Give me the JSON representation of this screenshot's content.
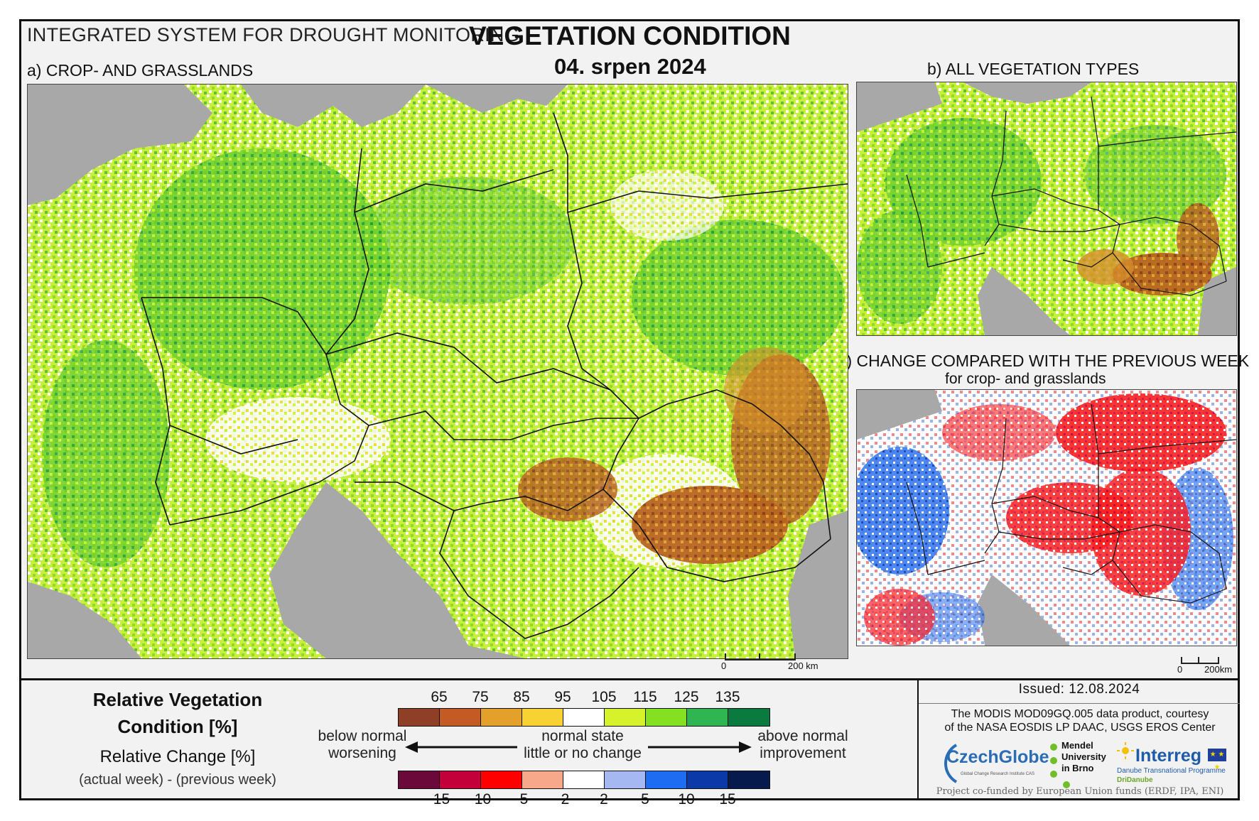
{
  "header": {
    "system": "INTEGRATED SYSTEM FOR DROUGHT MONITORING",
    "title": "VEGETATION CONDITION",
    "date": "04. srpen 2024"
  },
  "panels": {
    "a": "a) CROP- AND GRASSLANDS",
    "b": "b) ALL VEGETATION TYPES",
    "c": "c) CHANGE COMPARED WITH THE PREVIOUS WEEK",
    "c_sub": "for crop- and grasslands"
  },
  "scale": {
    "a": {
      "zero": "0",
      "dist": "200 km"
    },
    "c": {
      "zero": "0",
      "dist": "200km"
    }
  },
  "legend": {
    "rvc_title": "Relative Vegetation Condition [%]",
    "rc_title": "Relative Change [%]",
    "rc_sub": "(actual week) - (previous week)",
    "rvc_ticks": [
      "65",
      "75",
      "85",
      "95",
      "105",
      "115",
      "125",
      "135"
    ],
    "rvc_colors": [
      "#8e3f25",
      "#c45a24",
      "#e3a02b",
      "#f7d232",
      "#ffffff",
      "#d6f22a",
      "#86e022",
      "#2fb552",
      "#0b7a3e"
    ],
    "rc_ticks": [
      "-15",
      "-10",
      "-5",
      "-2",
      "2",
      "5",
      "10",
      "15"
    ],
    "rc_colors": [
      "#6b0a3a",
      "#c4003a",
      "#ff0000",
      "#f7a88a",
      "#ffffff",
      "#a5b8f2",
      "#1e6cf2",
      "#0b3aa8",
      "#071a4e"
    ],
    "below_normal": "below normal",
    "worsening": "worsening",
    "normal_state": "normal state",
    "little_change": "little or no change",
    "above_normal": "above normal",
    "improvement": "improvement"
  },
  "footer": {
    "issued": "Issued: 12.08.2024",
    "credit_line1": "The MODIS MOD09GQ.005 data product, courtesy",
    "credit_line2": "of the NASA EOSDIS LP DAAC, USGS EROS Center",
    "czechglobe": "CzechGlobe",
    "czechglobe_sub": "Global Change Research Institute CAS",
    "mendel_1": "Mendel",
    "mendel_2": "University",
    "mendel_3": "in Brno",
    "interreg": "Interreg",
    "interreg_sub1": "Danube Transnational Programme",
    "interreg_sub2": "DriDanube",
    "funded": "Project co-funded by European Union funds (ERDF, IPA, ENI)"
  }
}
